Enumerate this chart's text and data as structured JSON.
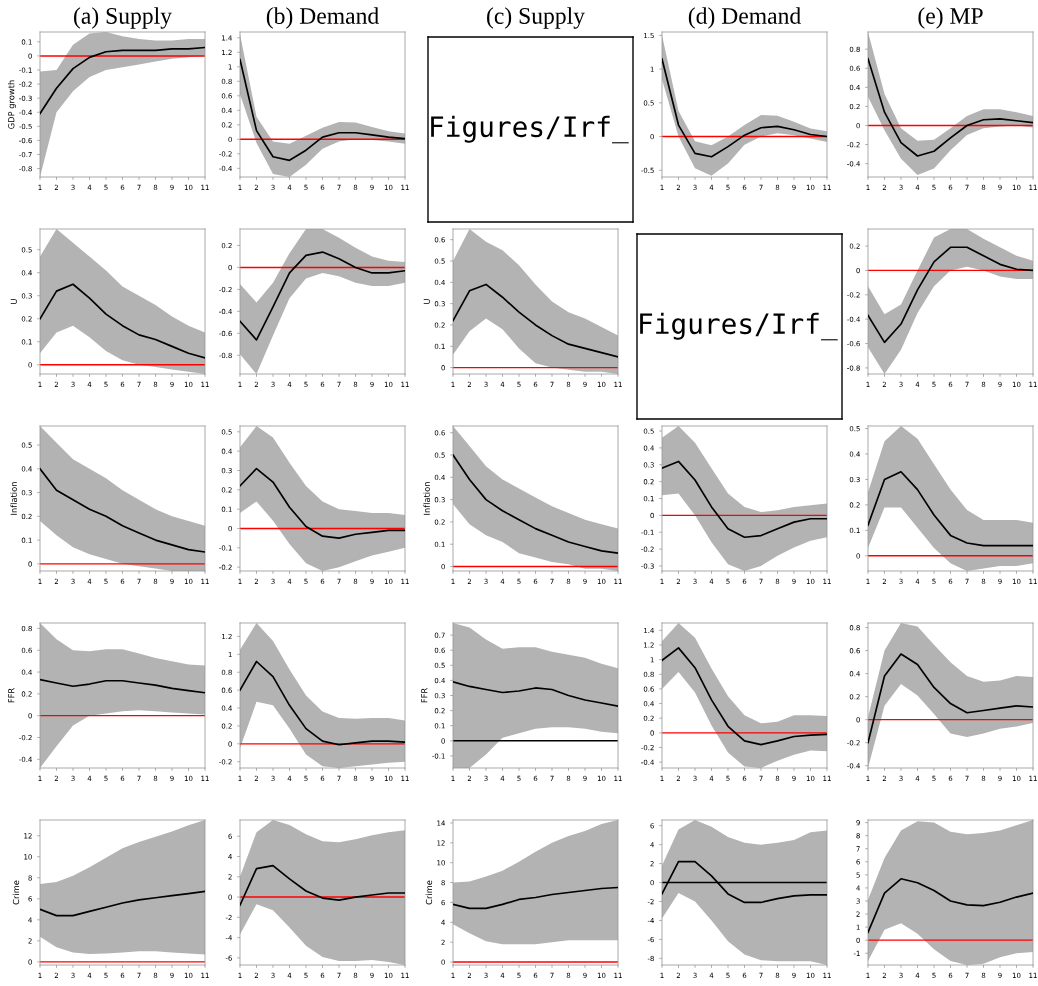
{
  "chart_data": [
    {
      "type": "line",
      "title": "(a) Supply",
      "ylabel": "GDP growth",
      "x": [
        1,
        2,
        3,
        4,
        5,
        6,
        7,
        8,
        9,
        10,
        11
      ],
      "xlim": [
        1,
        11
      ],
      "xticks": [
        1,
        2,
        3,
        4,
        5,
        6,
        7,
        8,
        9,
        10,
        11
      ],
      "ylim": [
        -0.86,
        0.17
      ],
      "yticks": [
        -0.8,
        -0.7,
        -0.6,
        -0.5,
        -0.4,
        -0.3,
        -0.2,
        -0.1,
        0,
        0.1
      ],
      "grid": false,
      "ref_lines": [
        {
          "axis": "y",
          "value": 0,
          "color": "#ff0000"
        }
      ],
      "series": [
        {
          "color": "#000000",
          "values": [
            -0.41,
            -0.23,
            -0.09,
            -0.01,
            0.03,
            0.04,
            0.04,
            0.04,
            0.05,
            0.05,
            0.06
          ],
          "lower": [
            -0.86,
            -0.4,
            -0.25,
            -0.15,
            -0.1,
            -0.08,
            -0.06,
            -0.04,
            -0.02,
            -0.01,
            0.0
          ],
          "upper": [
            -0.11,
            -0.1,
            0.08,
            0.16,
            0.17,
            0.14,
            0.12,
            0.11,
            0.11,
            0.12,
            0.12
          ]
        }
      ]
    },
    {
      "type": "line",
      "title": "(b) Demand",
      "x": [
        1,
        2,
        3,
        4,
        5,
        6,
        7,
        8,
        9,
        10,
        11
      ],
      "xlim": [
        1,
        11
      ],
      "xticks": [
        1,
        2,
        3,
        4,
        5,
        6,
        7,
        8,
        9,
        10,
        11
      ],
      "ylim": [
        -0.52,
        1.48
      ],
      "yticks": [
        -0.4,
        -0.2,
        0,
        0.2,
        0.4,
        0.6,
        0.8,
        1,
        1.2,
        1.4
      ],
      "grid": false,
      "ref_lines": [
        {
          "axis": "y",
          "value": 0,
          "color": "#ff0000"
        }
      ],
      "series": [
        {
          "color": "#000000",
          "values": [
            1.1,
            0.12,
            -0.24,
            -0.29,
            -0.15,
            0.03,
            0.09,
            0.09,
            0.06,
            0.03,
            0.01
          ],
          "lower": [
            0.62,
            -0.05,
            -0.48,
            -0.52,
            -0.35,
            -0.13,
            -0.03,
            0.0,
            -0.01,
            -0.03,
            -0.06
          ],
          "upper": [
            1.45,
            0.31,
            -0.03,
            -0.06,
            0.05,
            0.16,
            0.24,
            0.23,
            0.17,
            0.11,
            0.08
          ]
        }
      ]
    },
    {
      "type": "other",
      "title": "(c) Supply",
      "annotations": [
        "Figures/Irf_"
      ]
    },
    {
      "type": "line",
      "title": "(d) Demand",
      "x": [
        1,
        2,
        3,
        4,
        5,
        6,
        7,
        8,
        9,
        10,
        11
      ],
      "xlim": [
        1,
        11
      ],
      "xticks": [
        1,
        2,
        3,
        4,
        5,
        6,
        7,
        8,
        9,
        10,
        11
      ],
      "ylim": [
        -0.6,
        1.55
      ],
      "yticks": [
        -0.5,
        0,
        0.5,
        1,
        1.5
      ],
      "grid": false,
      "ref_lines": [
        {
          "axis": "y",
          "value": 0,
          "color": "#ff0000"
        }
      ],
      "series": [
        {
          "color": "#000000",
          "values": [
            1.15,
            0.17,
            -0.25,
            -0.3,
            -0.15,
            0.02,
            0.13,
            0.15,
            0.1,
            0.03,
            0.0
          ],
          "lower": [
            0.85,
            0.0,
            -0.47,
            -0.58,
            -0.4,
            -0.12,
            0.0,
            0.05,
            0.02,
            -0.03,
            -0.08
          ],
          "upper": [
            1.5,
            0.38,
            -0.07,
            -0.13,
            0.0,
            0.17,
            0.32,
            0.31,
            0.22,
            0.12,
            0.08
          ]
        }
      ]
    },
    {
      "type": "line",
      "title": "(e) MP",
      "x": [
        1,
        2,
        3,
        4,
        5,
        6,
        7,
        8,
        9,
        10,
        11
      ],
      "xlim": [
        1,
        11
      ],
      "xticks": [
        1,
        2,
        3,
        4,
        5,
        6,
        7,
        8,
        9,
        10,
        11
      ],
      "ylim": [
        -0.54,
        0.98
      ],
      "yticks": [
        -0.4,
        -0.2,
        0,
        0.2,
        0.4,
        0.6,
        0.8
      ],
      "grid": false,
      "ref_lines": [
        {
          "axis": "y",
          "value": 0,
          "color": "#ff0000"
        }
      ],
      "series": [
        {
          "color": "#000000",
          "values": [
            0.7,
            0.14,
            -0.18,
            -0.32,
            -0.27,
            -0.13,
            0.0,
            0.06,
            0.07,
            0.05,
            0.03
          ],
          "lower": [
            0.3,
            -0.05,
            -0.35,
            -0.52,
            -0.45,
            -0.26,
            -0.1,
            -0.03,
            -0.01,
            0.0,
            -0.02
          ],
          "upper": [
            0.98,
            0.33,
            -0.03,
            -0.16,
            -0.15,
            -0.03,
            0.1,
            0.17,
            0.17,
            0.14,
            0.1
          ]
        }
      ]
    },
    {
      "type": "line",
      "ylabel": "U",
      "x": [
        1,
        2,
        3,
        4,
        5,
        6,
        7,
        8,
        9,
        10,
        11
      ],
      "xlim": [
        1,
        11
      ],
      "xticks": [
        1,
        2,
        3,
        4,
        5,
        6,
        7,
        8,
        9,
        10,
        11
      ],
      "ylim": [
        -0.04,
        0.59
      ],
      "yticks": [
        0,
        0.1,
        0.2,
        0.3,
        0.4,
        0.5
      ],
      "grid": false,
      "ref_lines": [
        {
          "axis": "y",
          "value": 0,
          "color": "#ff0000"
        }
      ],
      "series": [
        {
          "color": "#000000",
          "values": [
            0.2,
            0.32,
            0.35,
            0.29,
            0.22,
            0.17,
            0.13,
            0.11,
            0.08,
            0.05,
            0.03
          ],
          "lower": [
            0.05,
            0.14,
            0.17,
            0.12,
            0.06,
            0.02,
            0.0,
            -0.01,
            -0.02,
            -0.03,
            -0.04
          ],
          "upper": [
            0.47,
            0.59,
            0.53,
            0.47,
            0.41,
            0.34,
            0.3,
            0.26,
            0.21,
            0.17,
            0.14
          ]
        }
      ]
    },
    {
      "type": "line",
      "x": [
        1,
        2,
        3,
        4,
        5,
        6,
        7,
        8,
        9,
        10,
        11
      ],
      "xlim": [
        1,
        11
      ],
      "xticks": [
        1,
        2,
        3,
        4,
        5,
        6,
        7,
        8,
        9,
        10,
        11
      ],
      "ylim": [
        -0.97,
        0.35
      ],
      "yticks": [
        -0.8,
        -0.6,
        -0.4,
        -0.2,
        0,
        0.2
      ],
      "grid": false,
      "ref_lines": [
        {
          "axis": "y",
          "value": 0,
          "color": "#ff0000"
        }
      ],
      "series": [
        {
          "color": "#000000",
          "values": [
            -0.49,
            -0.66,
            -0.36,
            -0.05,
            0.11,
            0.14,
            0.08,
            0.0,
            -0.05,
            -0.05,
            -0.03
          ],
          "lower": [
            -0.79,
            -0.97,
            -0.62,
            -0.28,
            -0.1,
            -0.05,
            -0.08,
            -0.14,
            -0.17,
            -0.17,
            -0.14
          ],
          "upper": [
            -0.15,
            -0.32,
            -0.14,
            0.13,
            0.35,
            0.35,
            0.27,
            0.18,
            0.1,
            0.06,
            0.05
          ]
        }
      ]
    },
    {
      "type": "line",
      "ylabel": "U",
      "x": [
        1,
        2,
        3,
        4,
        5,
        6,
        7,
        8,
        9,
        10,
        11
      ],
      "xlim": [
        1,
        11
      ],
      "xticks": [
        1,
        2,
        3,
        4,
        5,
        6,
        7,
        8,
        9,
        10,
        11
      ],
      "ylim": [
        -0.03,
        0.65
      ],
      "yticks": [
        0,
        0.1,
        0.2,
        0.3,
        0.4,
        0.5,
        0.6
      ],
      "grid": false,
      "ref_lines": [
        {
          "axis": "y",
          "value": 0,
          "color": "#ff0000"
        }
      ],
      "series": [
        {
          "color": "#000000",
          "values": [
            0.22,
            0.36,
            0.39,
            0.33,
            0.26,
            0.2,
            0.15,
            0.11,
            0.09,
            0.07,
            0.05
          ],
          "lower": [
            0.06,
            0.17,
            0.23,
            0.18,
            0.09,
            0.02,
            0.0,
            -0.01,
            -0.02,
            -0.02,
            -0.03
          ],
          "upper": [
            0.5,
            0.65,
            0.59,
            0.55,
            0.48,
            0.39,
            0.31,
            0.26,
            0.23,
            0.19,
            0.15
          ]
        }
      ]
    },
    {
      "type": "other",
      "annotations": [
        "Figures/Irf_"
      ]
    },
    {
      "type": "line",
      "x": [
        1,
        2,
        3,
        4,
        5,
        6,
        7,
        8,
        9,
        10,
        11
      ],
      "xlim": [
        1,
        11
      ],
      "xticks": [
        1,
        2,
        3,
        4,
        5,
        6,
        7,
        8,
        9,
        10,
        11
      ],
      "ylim": [
        -0.85,
        0.34
      ],
      "yticks": [
        -0.8,
        -0.6,
        -0.4,
        -0.2,
        0,
        0.2
      ],
      "grid": false,
      "ref_lines": [
        {
          "axis": "y",
          "value": 0,
          "color": "#ff0000"
        }
      ],
      "series": [
        {
          "color": "#000000",
          "values": [
            -0.37,
            -0.59,
            -0.44,
            -0.16,
            0.07,
            0.19,
            0.19,
            0.12,
            0.05,
            0.01,
            0.0
          ],
          "lower": [
            -0.63,
            -0.85,
            -0.65,
            -0.35,
            -0.13,
            0.0,
            0.03,
            0.0,
            -0.05,
            -0.07,
            -0.07
          ],
          "upper": [
            -0.13,
            -0.36,
            -0.28,
            0.0,
            0.27,
            0.34,
            0.34,
            0.26,
            0.19,
            0.12,
            0.08
          ]
        }
      ]
    },
    {
      "type": "line",
      "ylabel": "Inflation",
      "x": [
        1,
        2,
        3,
        4,
        5,
        6,
        7,
        8,
        9,
        10,
        11
      ],
      "xlim": [
        1,
        11
      ],
      "xticks": [
        1,
        2,
        3,
        4,
        5,
        6,
        7,
        8,
        9,
        10,
        11
      ],
      "ylim": [
        -0.03,
        0.58
      ],
      "yticks": [
        0,
        0.1,
        0.2,
        0.3,
        0.4,
        0.5
      ],
      "grid": false,
      "ref_lines": [
        {
          "axis": "y",
          "value": 0,
          "color": "#ff0000"
        }
      ],
      "series": [
        {
          "color": "#000000",
          "values": [
            0.4,
            0.31,
            0.27,
            0.23,
            0.2,
            0.16,
            0.13,
            0.1,
            0.08,
            0.06,
            0.05
          ],
          "lower": [
            0.18,
            0.12,
            0.07,
            0.04,
            0.02,
            0.0,
            -0.01,
            -0.02,
            -0.03,
            -0.03,
            -0.03
          ],
          "upper": [
            0.58,
            0.51,
            0.44,
            0.4,
            0.36,
            0.31,
            0.27,
            0.23,
            0.2,
            0.18,
            0.16
          ]
        }
      ]
    },
    {
      "type": "line",
      "x": [
        1,
        2,
        3,
        4,
        5,
        6,
        7,
        8,
        9,
        10,
        11
      ],
      "xlim": [
        1,
        11
      ],
      "xticks": [
        1,
        2,
        3,
        4,
        5,
        6,
        7,
        8,
        9,
        10,
        11
      ],
      "ylim": [
        -0.22,
        0.53
      ],
      "yticks": [
        -0.2,
        -0.1,
        0,
        0.1,
        0.2,
        0.3,
        0.4,
        0.5
      ],
      "grid": false,
      "ref_lines": [
        {
          "axis": "y",
          "value": 0,
          "color": "#ff0000"
        }
      ],
      "series": [
        {
          "color": "#000000",
          "values": [
            0.22,
            0.31,
            0.24,
            0.11,
            0.01,
            -0.04,
            -0.05,
            -0.03,
            -0.02,
            -0.01,
            -0.01
          ],
          "lower": [
            0.08,
            0.14,
            0.04,
            -0.08,
            -0.18,
            -0.22,
            -0.2,
            -0.17,
            -0.14,
            -0.12,
            -0.1
          ],
          "upper": [
            0.42,
            0.53,
            0.47,
            0.34,
            0.22,
            0.14,
            0.1,
            0.09,
            0.08,
            0.08,
            0.07
          ]
        }
      ]
    },
    {
      "type": "line",
      "ylabel": "Inflation",
      "x": [
        1,
        2,
        3,
        4,
        5,
        6,
        7,
        8,
        9,
        10,
        11
      ],
      "xlim": [
        1,
        11
      ],
      "xticks": [
        1,
        2,
        3,
        4,
        5,
        6,
        7,
        8,
        9,
        10,
        11
      ],
      "ylim": [
        -0.02,
        0.63
      ],
      "yticks": [
        0,
        0.1,
        0.2,
        0.3,
        0.4,
        0.5,
        0.6
      ],
      "grid": false,
      "ref_lines": [
        {
          "axis": "y",
          "value": 0,
          "color": "#ff0000"
        }
      ],
      "series": [
        {
          "color": "#000000",
          "values": [
            0.5,
            0.39,
            0.3,
            0.25,
            0.21,
            0.17,
            0.14,
            0.11,
            0.09,
            0.07,
            0.06
          ],
          "lower": [
            0.28,
            0.19,
            0.14,
            0.11,
            0.06,
            0.04,
            0.02,
            0.01,
            -0.01,
            -0.01,
            -0.02
          ],
          "upper": [
            0.63,
            0.54,
            0.45,
            0.39,
            0.35,
            0.31,
            0.27,
            0.24,
            0.21,
            0.19,
            0.17
          ]
        }
      ]
    },
    {
      "type": "line",
      "x": [
        1,
        2,
        3,
        4,
        5,
        6,
        7,
        8,
        9,
        10,
        11
      ],
      "xlim": [
        1,
        11
      ],
      "xticks": [
        1,
        2,
        3,
        4,
        5,
        6,
        7,
        8,
        9,
        10,
        11
      ],
      "ylim": [
        -0.33,
        0.53
      ],
      "yticks": [
        -0.3,
        -0.2,
        -0.1,
        0,
        0.1,
        0.2,
        0.3,
        0.4,
        0.5
      ],
      "grid": false,
      "ref_lines": [
        {
          "axis": "y",
          "value": 0,
          "color": "#ff0000"
        }
      ],
      "series": [
        {
          "color": "#000000",
          "values": [
            0.28,
            0.32,
            0.21,
            0.05,
            -0.08,
            -0.13,
            -0.12,
            -0.08,
            -0.04,
            -0.02,
            -0.02
          ],
          "lower": [
            0.12,
            0.13,
            0.0,
            -0.16,
            -0.29,
            -0.33,
            -0.3,
            -0.24,
            -0.19,
            -0.15,
            -0.13
          ],
          "upper": [
            0.46,
            0.53,
            0.43,
            0.28,
            0.13,
            0.05,
            0.02,
            0.03,
            0.05,
            0.06,
            0.07
          ]
        }
      ]
    },
    {
      "type": "line",
      "x": [
        1,
        2,
        3,
        4,
        5,
        6,
        7,
        8,
        9,
        10,
        11
      ],
      "xlim": [
        1,
        11
      ],
      "xticks": [
        1,
        2,
        3,
        4,
        5,
        6,
        7,
        8,
        9,
        10,
        11
      ],
      "ylim": [
        -0.06,
        0.51
      ],
      "yticks": [
        0,
        0.1,
        0.2,
        0.3,
        0.4,
        0.5
      ],
      "grid": false,
      "ref_lines": [
        {
          "axis": "y",
          "value": 0,
          "color": "#ff0000"
        }
      ],
      "series": [
        {
          "color": "#000000",
          "values": [
            0.12,
            0.3,
            0.33,
            0.26,
            0.16,
            0.08,
            0.05,
            0.04,
            0.04,
            0.04,
            0.04
          ],
          "lower": [
            0.03,
            0.19,
            0.19,
            0.11,
            0.03,
            -0.03,
            -0.06,
            -0.05,
            -0.04,
            -0.04,
            -0.03
          ],
          "upper": [
            0.25,
            0.45,
            0.51,
            0.46,
            0.36,
            0.26,
            0.18,
            0.14,
            0.14,
            0.14,
            0.13
          ]
        }
      ]
    },
    {
      "type": "line",
      "ylabel": "FFR",
      "x": [
        1,
        2,
        3,
        4,
        5,
        6,
        7,
        8,
        9,
        10,
        11
      ],
      "xlim": [
        1,
        11
      ],
      "xticks": [
        1,
        2,
        3,
        4,
        5,
        6,
        7,
        8,
        9,
        10,
        11
      ],
      "ylim": [
        -0.48,
        0.85
      ],
      "yticks": [
        -0.4,
        -0.2,
        0,
        0.2,
        0.4,
        0.6,
        0.8
      ],
      "grid": false,
      "ref_lines": [
        {
          "axis": "y",
          "value": 0,
          "color": "#ff0000"
        }
      ],
      "series": [
        {
          "color": "#000000",
          "values": [
            0.33,
            0.3,
            0.27,
            0.29,
            0.32,
            0.32,
            0.3,
            0.28,
            0.25,
            0.23,
            0.21
          ],
          "lower": [
            -0.48,
            -0.28,
            -0.09,
            0.0,
            0.02,
            0.04,
            0.05,
            0.04,
            0.03,
            0.02,
            0.01
          ],
          "upper": [
            0.85,
            0.7,
            0.6,
            0.59,
            0.61,
            0.61,
            0.57,
            0.53,
            0.5,
            0.47,
            0.46
          ]
        }
      ]
    },
    {
      "type": "line",
      "x": [
        1,
        2,
        3,
        4,
        5,
        6,
        7,
        8,
        9,
        10,
        11
      ],
      "xlim": [
        1,
        11
      ],
      "xticks": [
        1,
        2,
        3,
        4,
        5,
        6,
        7,
        8,
        9,
        10,
        11
      ],
      "ylim": [
        -0.27,
        1.35
      ],
      "yticks": [
        -0.2,
        0,
        0.2,
        0.4,
        0.6,
        0.8,
        1,
        1.2
      ],
      "grid": false,
      "ref_lines": [
        {
          "axis": "y",
          "value": 0,
          "color": "#ff0000"
        }
      ],
      "series": [
        {
          "color": "#000000",
          "values": [
            0.6,
            0.92,
            0.75,
            0.43,
            0.17,
            0.03,
            -0.01,
            0.01,
            0.03,
            0.03,
            0.02
          ],
          "lower": [
            -0.05,
            0.47,
            0.43,
            0.17,
            -0.12,
            -0.25,
            -0.27,
            -0.25,
            -0.23,
            -0.21,
            -0.2
          ],
          "upper": [
            1.05,
            1.35,
            1.15,
            0.83,
            0.54,
            0.36,
            0.29,
            0.28,
            0.29,
            0.29,
            0.26
          ]
        }
      ]
    },
    {
      "type": "line",
      "ylabel": "FFR",
      "x": [
        1,
        2,
        3,
        4,
        5,
        6,
        7,
        8,
        9,
        10,
        11
      ],
      "xlim": [
        1,
        11
      ],
      "xticks": [
        1,
        2,
        3,
        4,
        5,
        6,
        7,
        8,
        9,
        10,
        11
      ],
      "ylim": [
        -0.18,
        0.78
      ],
      "yticks": [
        -0.1,
        0,
        0.1,
        0.2,
        0.3,
        0.4,
        0.5,
        0.6,
        0.7
      ],
      "grid": false,
      "ref_lines": [
        {
          "axis": "y",
          "value": 0,
          "color": "#000000"
        }
      ],
      "series": [
        {
          "color": "#000000",
          "values": [
            0.39,
            0.36,
            0.34,
            0.32,
            0.33,
            0.35,
            0.34,
            0.3,
            0.27,
            0.25,
            0.23
          ],
          "lower": [
            -0.18,
            -0.18,
            -0.09,
            0.02,
            0.05,
            0.08,
            0.09,
            0.09,
            0.08,
            0.06,
            0.05
          ],
          "upper": [
            0.78,
            0.75,
            0.67,
            0.61,
            0.62,
            0.62,
            0.59,
            0.57,
            0.55,
            0.51,
            0.48
          ]
        }
      ]
    },
    {
      "type": "line",
      "x": [
        1,
        2,
        3,
        4,
        5,
        6,
        7,
        8,
        9,
        10,
        11
      ],
      "xlim": [
        1,
        11
      ],
      "xticks": [
        1,
        2,
        3,
        4,
        5,
        6,
        7,
        8,
        9,
        10,
        11
      ],
      "ylim": [
        -0.48,
        1.5
      ],
      "yticks": [
        -0.4,
        -0.2,
        0,
        0.2,
        0.4,
        0.6,
        0.8,
        1,
        1.2,
        1.4
      ],
      "grid": false,
      "ref_lines": [
        {
          "axis": "y",
          "value": 0,
          "color": "#ff0000"
        }
      ],
      "series": [
        {
          "color": "#000000",
          "values": [
            0.99,
            1.16,
            0.89,
            0.45,
            0.09,
            -0.11,
            -0.16,
            -0.11,
            -0.05,
            -0.03,
            -0.02
          ],
          "lower": [
            0.6,
            0.83,
            0.55,
            0.1,
            -0.27,
            -0.46,
            -0.48,
            -0.38,
            -0.3,
            -0.24,
            -0.25
          ],
          "upper": [
            1.25,
            1.5,
            1.3,
            0.88,
            0.5,
            0.24,
            0.13,
            0.15,
            0.24,
            0.24,
            0.23
          ]
        }
      ]
    },
    {
      "type": "line",
      "x": [
        1,
        2,
        3,
        4,
        5,
        6,
        7,
        8,
        9,
        10,
        11
      ],
      "xlim": [
        1,
        11
      ],
      "xticks": [
        1,
        2,
        3,
        4,
        5,
        6,
        7,
        8,
        9,
        10,
        11
      ],
      "ylim": [
        -0.42,
        0.84
      ],
      "yticks": [
        -0.4,
        -0.2,
        0,
        0.2,
        0.4,
        0.6,
        0.8
      ],
      "grid": false,
      "ref_lines": [
        {
          "axis": "y",
          "value": 0,
          "color": "#ff0000"
        }
      ],
      "series": [
        {
          "color": "#000000",
          "values": [
            -0.2,
            0.38,
            0.57,
            0.48,
            0.28,
            0.14,
            0.06,
            0.08,
            0.1,
            0.12,
            0.11
          ],
          "lower": [
            -0.42,
            0.12,
            0.31,
            0.21,
            0.05,
            -0.12,
            -0.15,
            -0.12,
            -0.08,
            -0.06,
            -0.03
          ],
          "upper": [
            0.02,
            0.6,
            0.84,
            0.81,
            0.65,
            0.5,
            0.38,
            0.33,
            0.34,
            0.38,
            0.37
          ]
        }
      ]
    },
    {
      "type": "line",
      "ylabel": "Crime",
      "x": [
        1,
        2,
        3,
        4,
        5,
        6,
        7,
        8,
        9,
        10,
        11
      ],
      "xlim": [
        1,
        11
      ],
      "xticks": [
        1,
        2,
        3,
        4,
        5,
        6,
        7,
        8,
        9,
        10,
        11
      ],
      "ylim": [
        -0.3,
        13.5
      ],
      "yticks": [
        0,
        2,
        4,
        6,
        8,
        10,
        12
      ],
      "grid": false,
      "ref_lines": [
        {
          "axis": "y",
          "value": 0,
          "color": "#ff0000"
        }
      ],
      "series": [
        {
          "color": "#000000",
          "values": [
            5.0,
            4.4,
            4.4,
            4.8,
            5.2,
            5.6,
            5.9,
            6.1,
            6.3,
            6.5,
            6.7
          ],
          "lower": [
            2.4,
            1.4,
            0.9,
            0.75,
            0.8,
            0.9,
            1.0,
            1.0,
            0.9,
            0.8,
            0.7
          ],
          "upper": [
            7.4,
            7.6,
            8.2,
            9.0,
            9.9,
            10.8,
            11.4,
            11.9,
            12.4,
            13.0,
            13.5
          ]
        }
      ]
    },
    {
      "type": "line",
      "x": [
        1,
        2,
        3,
        4,
        5,
        6,
        7,
        8,
        9,
        10,
        11
      ],
      "xlim": [
        1,
        11
      ],
      "xticks": [
        1,
        2,
        3,
        4,
        5,
        6,
        7,
        8,
        9,
        10,
        11
      ],
      "ylim": [
        -6.7,
        7.6
      ],
      "yticks": [
        -6,
        -4,
        -2,
        0,
        2,
        4,
        6
      ],
      "grid": false,
      "ref_lines": [
        {
          "axis": "y",
          "value": 0,
          "color": "#ff0000"
        }
      ],
      "series": [
        {
          "color": "#000000",
          "values": [
            -0.8,
            2.8,
            3.1,
            1.8,
            0.6,
            -0.1,
            -0.3,
            0.0,
            0.2,
            0.4,
            0.4
          ],
          "lower": [
            -3.7,
            -0.7,
            -1.3,
            -3.0,
            -4.8,
            -5.9,
            -6.3,
            -6.3,
            -6.2,
            -6.4,
            -6.7
          ],
          "upper": [
            2.0,
            6.4,
            7.6,
            7.1,
            6.2,
            5.5,
            5.4,
            5.7,
            6.1,
            6.4,
            6.6
          ]
        }
      ]
    },
    {
      "type": "line",
      "ylabel": "Crime",
      "x": [
        1,
        2,
        3,
        4,
        5,
        6,
        7,
        8,
        9,
        10,
        11
      ],
      "xlim": [
        1,
        11
      ],
      "xticks": [
        1,
        2,
        3,
        4,
        5,
        6,
        7,
        8,
        9,
        10,
        11
      ],
      "ylim": [
        -0.3,
        14.3
      ],
      "yticks": [
        0,
        2,
        4,
        6,
        8,
        10,
        12,
        14
      ],
      "grid": false,
      "ref_lines": [
        {
          "axis": "y",
          "value": 0,
          "color": "#ff0000"
        }
      ],
      "series": [
        {
          "color": "#000000",
          "values": [
            5.8,
            5.4,
            5.4,
            5.8,
            6.3,
            6.5,
            6.8,
            7.0,
            7.2,
            7.4,
            7.5
          ],
          "lower": [
            3.8,
            2.9,
            2.1,
            1.8,
            1.8,
            1.8,
            2.0,
            2.2,
            2.2,
            2.2,
            2.2
          ],
          "upper": [
            8.0,
            8.1,
            8.6,
            9.2,
            10.1,
            11.1,
            12.0,
            12.7,
            13.2,
            13.9,
            14.3
          ]
        }
      ]
    },
    {
      "type": "line",
      "x": [
        1,
        2,
        3,
        4,
        5,
        6,
        7,
        8,
        9,
        10,
        11
      ],
      "xlim": [
        1,
        11
      ],
      "xticks": [
        1,
        2,
        3,
        4,
        5,
        6,
        7,
        8,
        9,
        10,
        11
      ],
      "ylim": [
        -8.7,
        6.6
      ],
      "yticks": [
        -8,
        -6,
        -4,
        -2,
        0,
        2,
        4,
        6
      ],
      "grid": false,
      "ref_lines": [
        {
          "axis": "y",
          "value": 0,
          "color": "#000000"
        }
      ],
      "series": [
        {
          "color": "#000000",
          "values": [
            -1.2,
            2.2,
            2.2,
            0.7,
            -1.2,
            -2.1,
            -2.1,
            -1.7,
            -1.4,
            -1.3,
            -1.3
          ],
          "lower": [
            -3.8,
            -1.1,
            -2.0,
            -4.0,
            -6.2,
            -7.6,
            -8.2,
            -8.3,
            -8.3,
            -8.3,
            -8.7
          ],
          "upper": [
            1.8,
            5.6,
            6.6,
            5.9,
            4.8,
            4.2,
            4.0,
            4.2,
            4.5,
            5.3,
            5.5
          ]
        }
      ]
    },
    {
      "type": "line",
      "x": [
        1,
        2,
        3,
        4,
        5,
        6,
        7,
        8,
        9,
        10,
        11
      ],
      "xlim": [
        1,
        11
      ],
      "xticks": [
        1,
        2,
        3,
        4,
        5,
        6,
        7,
        8,
        9,
        10,
        11
      ],
      "ylim": [
        -1.9,
        9.2
      ],
      "yticks": [
        -1,
        0,
        1,
        2,
        3,
        4,
        5,
        6,
        7,
        8,
        9
      ],
      "grid": false,
      "ref_lines": [
        {
          "axis": "y",
          "value": 0,
          "color": "#ff0000"
        }
      ],
      "series": [
        {
          "color": "#000000",
          "values": [
            0.6,
            3.6,
            4.7,
            4.4,
            3.8,
            3.0,
            2.7,
            2.65,
            2.9,
            3.3,
            3.6
          ],
          "lower": [
            -1.6,
            0.8,
            1.3,
            0.5,
            -0.7,
            -1.6,
            -1.9,
            -1.8,
            -1.3,
            -1.0,
            -0.9
          ],
          "upper": [
            3.1,
            6.3,
            8.4,
            9.1,
            9.0,
            8.3,
            8.1,
            8.2,
            8.4,
            8.8,
            9.2
          ]
        }
      ]
    }
  ]
}
